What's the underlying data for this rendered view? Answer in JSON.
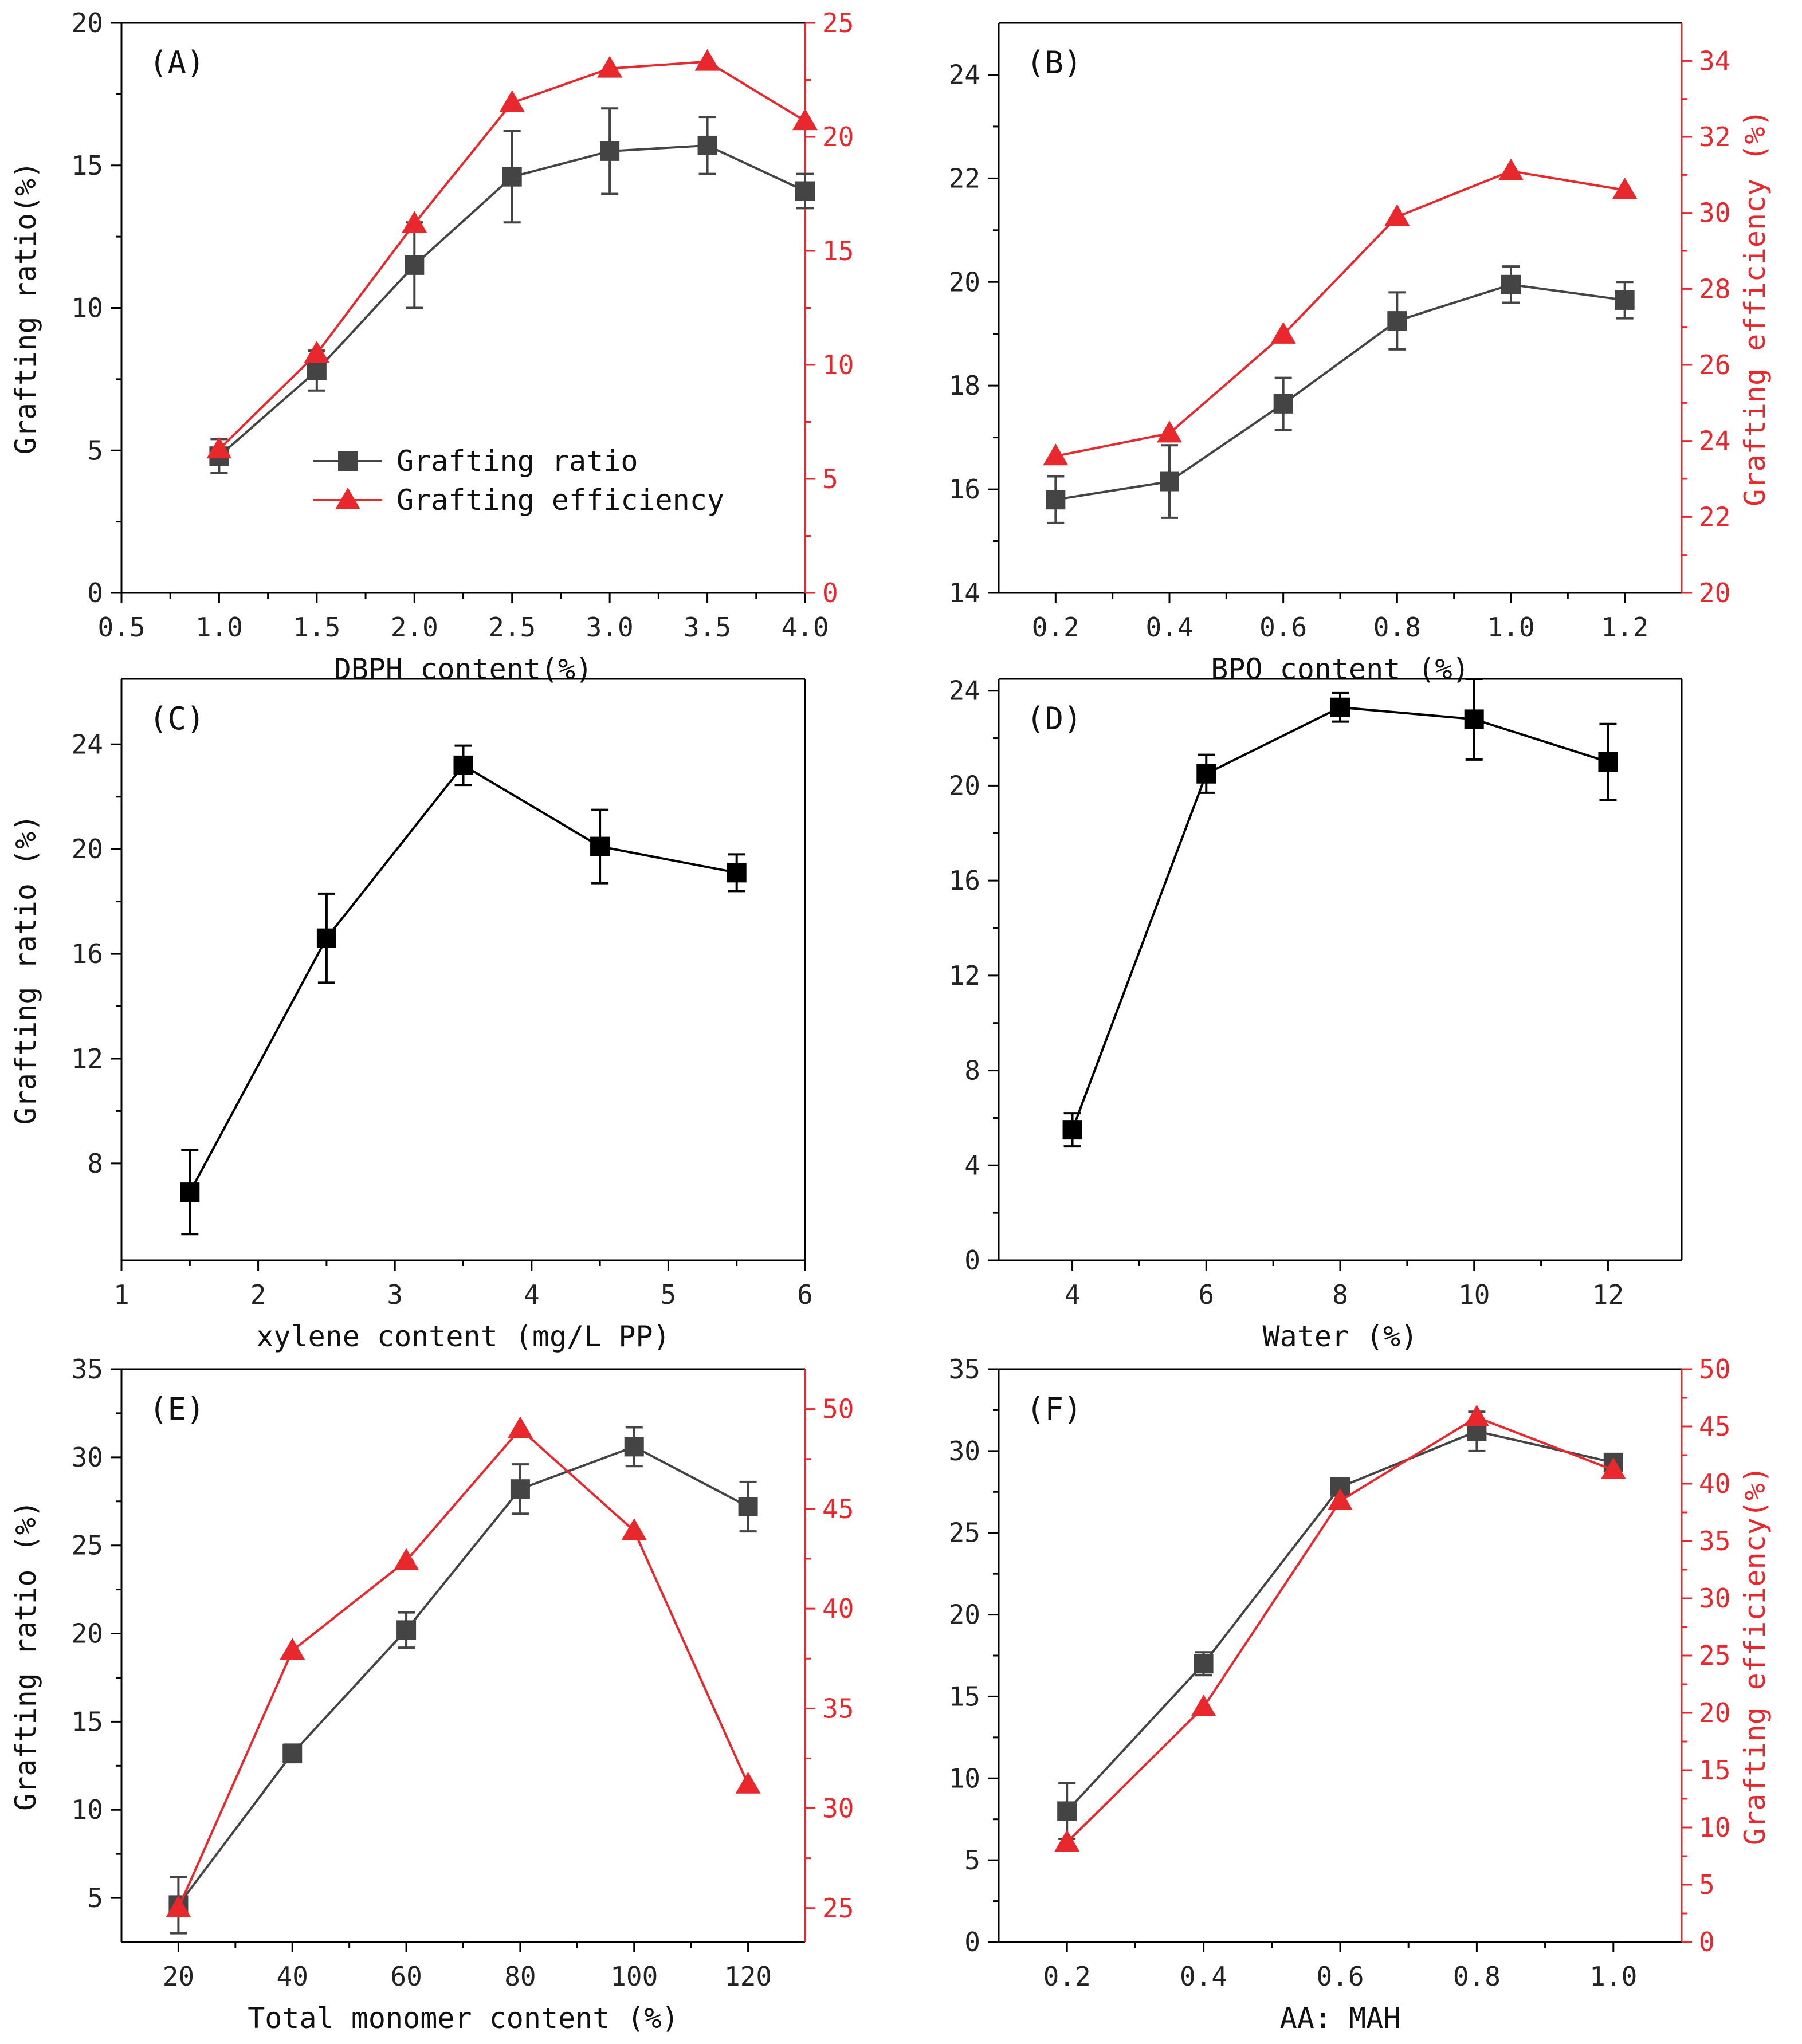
{
  "colors": {
    "ratio_gray": "#444444",
    "ratio_black": "#000000",
    "efficiency_red": "#e8282d",
    "axis": "#000000"
  },
  "chart_data": [
    {
      "id": "A",
      "type": "line",
      "panel_label": "(A)",
      "xlabel": "DBPH content(%)",
      "ylabel": "Grafting ratio(%)",
      "y2label": "",
      "xlim": [
        0.5,
        4.0
      ],
      "ylim": [
        0,
        20
      ],
      "y2lim": [
        0,
        25
      ],
      "xticks": [
        0.5,
        1.0,
        1.5,
        2.0,
        2.5,
        3.0,
        3.5,
        4.0
      ],
      "xtick_labels": [
        "0.5",
        "1.0",
        "1.5",
        "2.0",
        "2.5",
        "3.0",
        "3.5",
        "4.0"
      ],
      "yticks": [
        0,
        5,
        10,
        15,
        20
      ],
      "ytick_labels": [
        "0",
        "5",
        "10",
        "15",
        "20"
      ],
      "y2ticks": [
        0,
        5,
        10,
        15,
        20,
        25
      ],
      "y2tick_labels": [
        "0",
        "5",
        "10",
        "15",
        "20",
        "25"
      ],
      "legend": {
        "placement": "lower-center"
      },
      "series": [
        {
          "name": "Grafting ratio",
          "axis": "left",
          "marker": "square",
          "color": "#444444",
          "x": [
            1.0,
            1.5,
            2.0,
            2.5,
            3.0,
            3.5,
            4.0
          ],
          "y": [
            4.8,
            7.8,
            11.5,
            14.6,
            15.5,
            15.7,
            14.1
          ],
          "err": [
            0.6,
            0.7,
            1.5,
            1.6,
            1.5,
            1.0,
            0.6
          ]
        },
        {
          "name": "Grafting efficiency",
          "axis": "right",
          "marker": "triangle",
          "color": "#e8282d",
          "x": [
            1.0,
            1.5,
            2.0,
            2.5,
            3.0,
            3.5,
            4.0
          ],
          "y": [
            6.3,
            10.5,
            16.2,
            21.5,
            23.0,
            23.3,
            20.7
          ]
        }
      ]
    },
    {
      "id": "B",
      "type": "line",
      "panel_label": "(B)",
      "xlabel": "BPO content (%)",
      "ylabel": "",
      "y2label": "Grafting efficiency (%)",
      "xlim": [
        0.1,
        1.3
      ],
      "ylim": [
        14,
        25
      ],
      "y2lim": [
        20,
        35
      ],
      "xticks": [
        0.2,
        0.4,
        0.6,
        0.8,
        1.0,
        1.2
      ],
      "xtick_labels": [
        "0.2",
        "0.4",
        "0.6",
        "0.8",
        "1.0",
        "1.2"
      ],
      "yticks": [
        14,
        16,
        18,
        20,
        22,
        24
      ],
      "ytick_labels": [
        "14",
        "16",
        "18",
        "20",
        "22",
        "24"
      ],
      "y2ticks": [
        20,
        22,
        24,
        26,
        28,
        30,
        32,
        34
      ],
      "y2tick_labels": [
        "20",
        "22",
        "24",
        "26",
        "28",
        "30",
        "32",
        "34"
      ],
      "series": [
        {
          "name": "",
          "axis": "left",
          "marker": "square",
          "color": "#444444",
          "x": [
            0.2,
            0.4,
            0.6,
            0.8,
            1.0,
            1.2
          ],
          "y": [
            15.8,
            16.15,
            17.65,
            19.25,
            19.95,
            19.65
          ],
          "err": [
            0.45,
            0.7,
            0.5,
            0.55,
            0.35,
            0.35
          ]
        },
        {
          "name": "",
          "axis": "right",
          "marker": "triangle",
          "color": "#e8282d",
          "x": [
            0.2,
            0.4,
            0.6,
            0.8,
            1.0,
            1.2
          ],
          "y": [
            23.6,
            24.2,
            26.8,
            29.9,
            31.1,
            30.6
          ]
        }
      ]
    },
    {
      "id": "C",
      "type": "line",
      "panel_label": "(C)",
      "xlabel": "xylene content (mg/L PP)",
      "ylabel": "Grafting ratio (%)",
      "xlim": [
        1,
        6
      ],
      "ylim": [
        4.3,
        26.5
      ],
      "xticks": [
        1,
        2,
        3,
        4,
        5,
        6
      ],
      "xtick_labels": [
        "1",
        "2",
        "3",
        "4",
        "5",
        "6"
      ],
      "yticks": [
        8,
        12,
        16,
        20,
        24
      ],
      "ytick_labels": [
        "8",
        "12",
        "16",
        "20",
        "24"
      ],
      "series": [
        {
          "name": "",
          "axis": "left",
          "marker": "square",
          "color": "#000000",
          "x": [
            1.5,
            2.5,
            3.5,
            4.5,
            5.5
          ],
          "y": [
            6.9,
            16.6,
            23.2,
            20.1,
            19.1
          ],
          "err": [
            1.6,
            1.7,
            0.75,
            1.4,
            0.7
          ]
        }
      ]
    },
    {
      "id": "D",
      "type": "line",
      "panel_label": "(D)",
      "xlabel": "Water (%)",
      "ylabel": "",
      "xlim": [
        2.9,
        13.1
      ],
      "ylim": [
        0,
        24.5
      ],
      "xticks": [
        4,
        6,
        8,
        10,
        12
      ],
      "xtick_labels": [
        "4",
        "6",
        "8",
        "10",
        "12"
      ],
      "yticks": [
        0,
        4,
        8,
        12,
        16,
        20,
        24
      ],
      "ytick_labels": [
        "0",
        "4",
        "8",
        "12",
        "16",
        "20",
        "24"
      ],
      "series": [
        {
          "name": "",
          "axis": "left",
          "marker": "square",
          "color": "#000000",
          "x": [
            4,
            6,
            8,
            10,
            12
          ],
          "y": [
            5.5,
            20.5,
            23.3,
            22.8,
            21.0
          ],
          "err": [
            0.7,
            0.8,
            0.6,
            1.7,
            1.6
          ]
        }
      ]
    },
    {
      "id": "E",
      "type": "line",
      "panel_label": "(E)",
      "xlabel": "Total monomer content (%)",
      "ylabel": "Grafting ratio (%)",
      "y2label": "",
      "xlim": [
        10,
        130
      ],
      "ylim": [
        2.5,
        35
      ],
      "y2lim": [
        23.3,
        52
      ],
      "xticks": [
        20,
        40,
        60,
        80,
        100,
        120
      ],
      "xtick_labels": [
        "20",
        "40",
        "60",
        "80",
        "100",
        "120"
      ],
      "yticks": [
        5,
        10,
        15,
        20,
        25,
        30,
        35
      ],
      "ytick_labels": [
        "5",
        "10",
        "15",
        "20",
        "25",
        "30",
        "35"
      ],
      "y2ticks": [
        25,
        30,
        35,
        40,
        45,
        50
      ],
      "y2tick_labels": [
        "25",
        "30",
        "35",
        "40",
        "45",
        "50"
      ],
      "series": [
        {
          "name": "",
          "axis": "left",
          "marker": "square",
          "color": "#444444",
          "x": [
            20,
            40,
            60,
            80,
            100,
            120
          ],
          "y": [
            4.6,
            13.2,
            20.2,
            28.2,
            30.6,
            27.2
          ],
          "err": [
            1.6,
            0.5,
            1.0,
            1.4,
            1.1,
            1.4
          ]
        },
        {
          "name": "",
          "axis": "right",
          "marker": "triangle",
          "color": "#e8282d",
          "x": [
            20,
            40,
            60,
            80,
            100,
            120
          ],
          "y": [
            25.0,
            37.9,
            42.4,
            49.0,
            43.9,
            31.2
          ]
        }
      ]
    },
    {
      "id": "F",
      "type": "line",
      "panel_label": "(F)",
      "xlabel": "AA: MAH",
      "ylabel": "",
      "y2label": "Grafting efficiency(%)",
      "xlim": [
        0.1,
        1.1
      ],
      "ylim": [
        0,
        35
      ],
      "y2lim": [
        0,
        50
      ],
      "xticks": [
        0.2,
        0.4,
        0.6,
        0.8,
        1.0
      ],
      "xtick_labels": [
        "0.2",
        "0.4",
        "0.6",
        "0.8",
        "1.0"
      ],
      "yticks": [
        0,
        5,
        10,
        15,
        20,
        25,
        30,
        35
      ],
      "ytick_labels": [
        "0",
        "5",
        "10",
        "15",
        "20",
        "25",
        "30",
        "35"
      ],
      "y2ticks": [
        0,
        5,
        10,
        15,
        20,
        25,
        30,
        35,
        40,
        45,
        50
      ],
      "y2tick_labels": [
        "0",
        "5",
        "10",
        "15",
        "20",
        "25",
        "30",
        "35",
        "40",
        "45",
        "50"
      ],
      "series": [
        {
          "name": "",
          "axis": "left",
          "marker": "square",
          "color": "#444444",
          "x": [
            0.2,
            0.4,
            0.6,
            0.8,
            1.0
          ],
          "y": [
            8.0,
            17.0,
            27.8,
            31.2,
            29.3
          ],
          "err": [
            1.7,
            0.7,
            0.4,
            1.2,
            0.4
          ]
        },
        {
          "name": "",
          "axis": "right",
          "marker": "triangle",
          "color": "#e8282d",
          "x": [
            0.2,
            0.4,
            0.6,
            0.8,
            1.0
          ],
          "y": [
            8.7,
            20.5,
            38.5,
            45.8,
            41.2
          ]
        }
      ]
    }
  ]
}
